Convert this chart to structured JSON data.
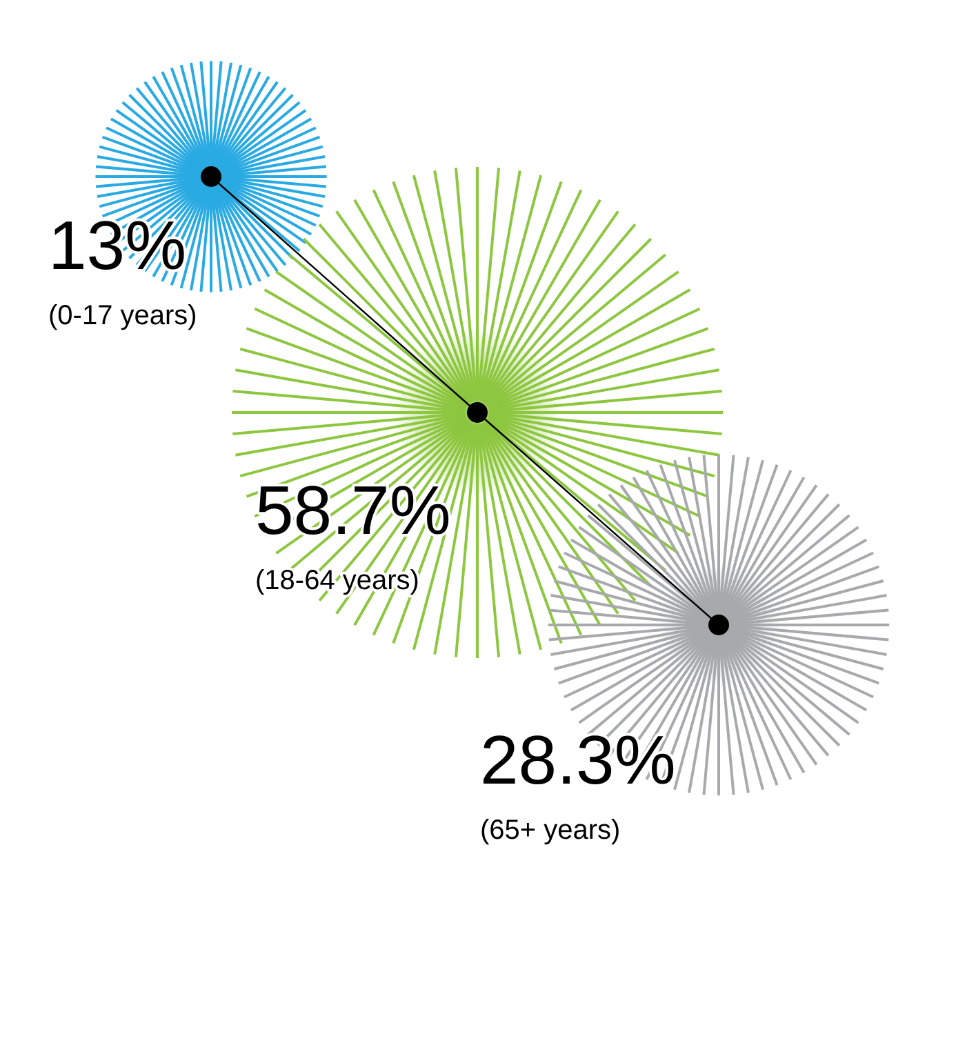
{
  "chart_data": {
    "type": "other",
    "categories": [
      "(0-17 years)",
      "(18-64 years)",
      "(65+ years)"
    ],
    "values": [
      13,
      58.7,
      28.3
    ],
    "value_labels": [
      "13%",
      "58.7%",
      "28.3%"
    ],
    "colors": [
      "#29aae2",
      "#8dc63f",
      "#a7a9ac"
    ]
  }
}
